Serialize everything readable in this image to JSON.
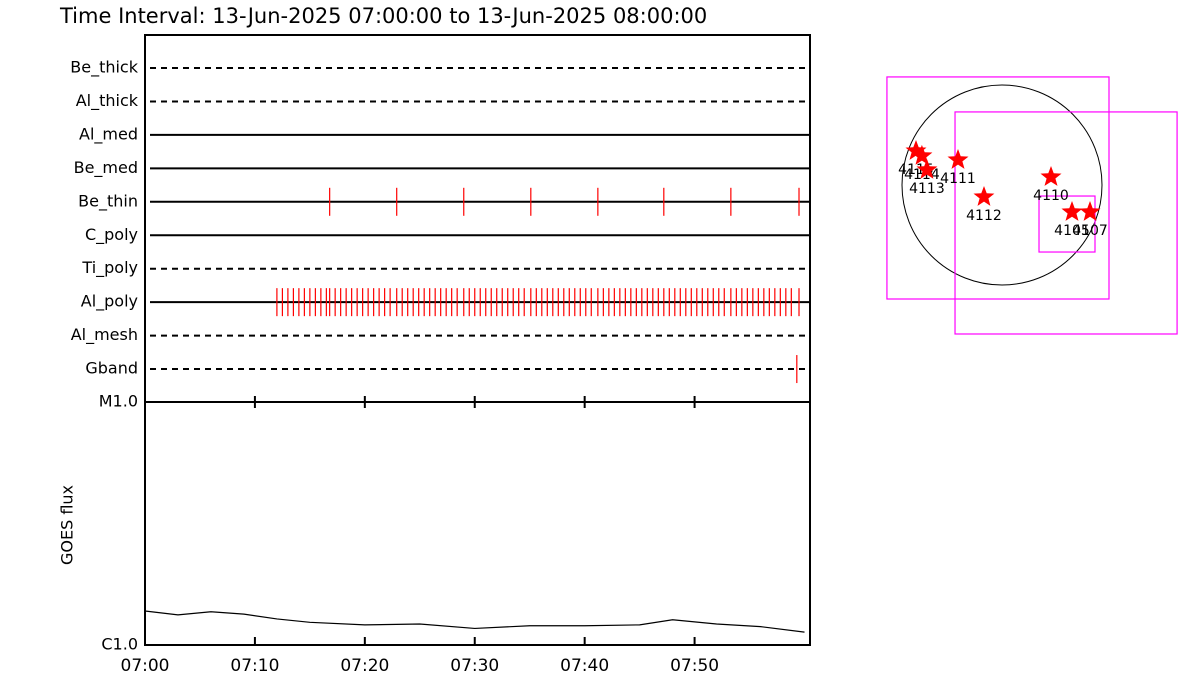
{
  "title": "Time Interval: 13-Jun-2025 07:00:00 to 13-Jun-2025 08:00:00",
  "chart_data": [
    {
      "type": "timeline",
      "categories": [
        "Be_thick",
        "Al_thick",
        "Al_med",
        "Be_med",
        "Be_thin",
        "C_poly",
        "Ti_poly",
        "Al_poly",
        "Al_mesh",
        "Gband"
      ],
      "line_styles": [
        "dashed",
        "dashed",
        "solid",
        "solid",
        "solid",
        "solid",
        "dashed",
        "solid",
        "dashed",
        "dashed"
      ],
      "color": "#ff0000",
      "xlim": [
        0,
        60.5
      ],
      "series": [
        {
          "name": "Be_thick",
          "x": []
        },
        {
          "name": "Al_thick",
          "x": []
        },
        {
          "name": "Al_med",
          "x": []
        },
        {
          "name": "Be_med",
          "x": []
        },
        {
          "name": "Be_thin",
          "x": [
            16.8,
            22.9,
            29.0,
            35.1,
            41.2,
            47.2,
            53.3,
            59.5
          ]
        },
        {
          "name": "C_poly",
          "x": []
        },
        {
          "name": "Ti_poly",
          "x": []
        },
        {
          "name": "Al_poly",
          "x": [
            12.0,
            12.5,
            13.0,
            13.5,
            14.0,
            14.5,
            15.0,
            15.5,
            16.0,
            16.5,
            16.8,
            17.3,
            17.8,
            18.3,
            18.8,
            19.3,
            19.8,
            20.3,
            20.8,
            21.3,
            21.8,
            22.3,
            22.9,
            23.4,
            23.9,
            24.4,
            24.9,
            25.4,
            25.9,
            26.4,
            26.9,
            27.4,
            27.9,
            28.4,
            29.0,
            29.5,
            30.0,
            30.5,
            31.0,
            31.5,
            32.0,
            32.5,
            33.0,
            33.5,
            34.0,
            34.5,
            35.1,
            35.6,
            36.1,
            36.6,
            37.1,
            37.6,
            38.1,
            38.6,
            39.1,
            39.6,
            40.1,
            40.6,
            41.2,
            41.7,
            42.2,
            42.7,
            43.2,
            43.7,
            44.2,
            44.7,
            45.2,
            45.7,
            46.2,
            46.7,
            47.2,
            47.7,
            48.2,
            48.7,
            49.2,
            49.7,
            50.2,
            50.7,
            51.2,
            51.7,
            52.2,
            52.7,
            53.3,
            53.8,
            54.3,
            54.8,
            55.3,
            55.8,
            56.3,
            56.8,
            57.3,
            57.8,
            58.3,
            58.8,
            59.5
          ]
        },
        {
          "name": "Al_mesh",
          "x": []
        },
        {
          "name": "Gband",
          "x": [
            59.3
          ]
        }
      ]
    },
    {
      "type": "line",
      "ylabel": "GOES flux",
      "log_scale": true,
      "color": "#000000",
      "xlim": [
        0,
        60.5
      ],
      "xticks": [
        {
          "value": 0,
          "label": "07:00"
        },
        {
          "value": 10,
          "label": "07:10"
        },
        {
          "value": 20,
          "label": "07:20"
        },
        {
          "value": 30,
          "label": "07:30"
        },
        {
          "value": 40,
          "label": "07:40"
        },
        {
          "value": 50,
          "label": "07:50"
        }
      ],
      "ylim": [
        1e-06,
        1e-05
      ],
      "yticks": [
        {
          "value": 1e-05,
          "label": "M1.0"
        },
        {
          "value": 1e-06,
          "label": "C1.0"
        }
      ],
      "x": [
        0,
        3,
        6,
        9,
        12,
        15,
        20,
        25,
        30,
        35,
        40,
        45,
        48,
        52,
        56,
        60
      ],
      "values": [
        1.38e-06,
        1.33e-06,
        1.37e-06,
        1.34e-06,
        1.28e-06,
        1.24e-06,
        1.21e-06,
        1.22e-06,
        1.17e-06,
        1.2e-06,
        1.2e-06,
        1.21e-06,
        1.27e-06,
        1.22e-06,
        1.19e-06,
        1.13e-06
      ]
    },
    {
      "type": "map",
      "disk_radius": 943,
      "disk_color": "#000000",
      "box_color": "#ff00ff",
      "star_color": "#ff0000",
      "boxes": [
        {
          "x": -38,
          "y": -28,
          "size": 2094
        },
        {
          "x": 604,
          "y": -358,
          "size": 2094
        },
        {
          "x": 613,
          "y": -368,
          "size": 528
        }
      ],
      "regions": [
        {
          "label": "4115",
          "x": -811,
          "y": 321
        },
        {
          "label": "4114",
          "x": -755,
          "y": 274
        },
        {
          "label": "4113",
          "x": -708,
          "y": 142
        },
        {
          "label": "4111",
          "x": -415,
          "y": 236
        },
        {
          "label": "4112",
          "x": -170,
          "y": -113
        },
        {
          "label": "4110",
          "x": 462,
          "y": 75
        },
        {
          "label": "4105",
          "x": 660,
          "y": -255
        },
        {
          "label": "4107",
          "x": 830,
          "y": -255
        }
      ]
    }
  ]
}
